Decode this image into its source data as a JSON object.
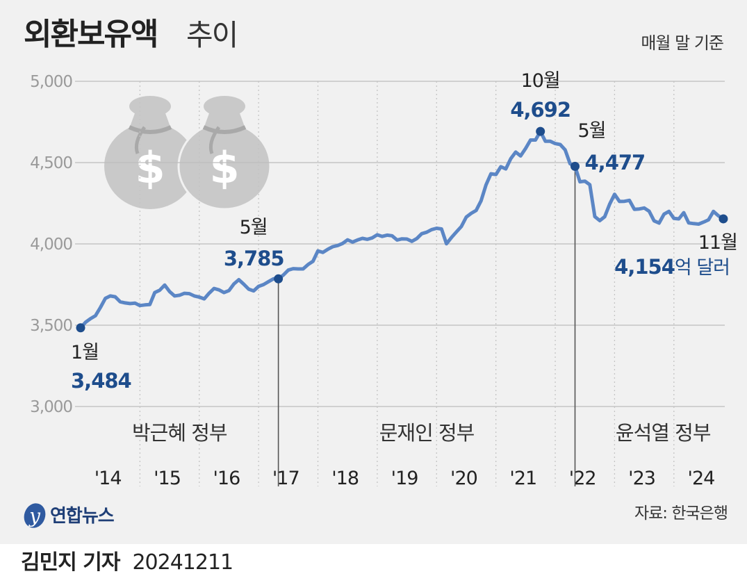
{
  "header": {
    "title_main": "외환보유액",
    "title_sub": "추이",
    "basis": "매월 말 기준"
  },
  "footer": {
    "source": "자료: 한국은행",
    "logo_text": "연합뉴스",
    "byline_name": "김민지 기자",
    "byline_date": "20241211"
  },
  "colors": {
    "line": "#5b86c5",
    "marker": "#1e4d8c",
    "value_text": "#1e4d8c",
    "panel_bg": "#f1f1f1"
  },
  "icons": [
    "money-bag-icon",
    "money-bag-icon"
  ],
  "chart_data": {
    "type": "line",
    "title": "외환보유액 추이",
    "ylim": [
      3000,
      5000
    ],
    "yticks": [
      3000,
      3500,
      4000,
      4500,
      5000
    ],
    "ytick_labels": [
      "3,000",
      "3,500",
      "4,000",
      "4,500",
      "5,000"
    ],
    "x_tick_labels": [
      "'14",
      "'15",
      "'16",
      "'17",
      "'18",
      "'19",
      "'20",
      "'21",
      "'22",
      "'23",
      "'24"
    ],
    "grid": true,
    "eras": [
      {
        "label": "박근혜 정부",
        "start": "2014-01",
        "end": "2017-05"
      },
      {
        "label": "문재인 정부",
        "start": "2017-05",
        "end": "2022-05"
      },
      {
        "label": "윤석열 정부",
        "start": "2022-05",
        "end": "2024-11"
      }
    ],
    "series": [
      {
        "start": "2014-01",
        "frequency": "monthly",
        "values": [
          3484,
          3518,
          3540,
          3558,
          3609,
          3665,
          3680,
          3675,
          3644,
          3637,
          3633,
          3636,
          3621,
          3625,
          3627,
          3701,
          3715,
          3747,
          3707,
          3680,
          3684,
          3696,
          3694,
          3680,
          3673,
          3662,
          3697,
          3726,
          3717,
          3701,
          3713,
          3754,
          3780,
          3752,
          3722,
          3711,
          3739,
          3750,
          3768,
          3785,
          3785,
          3808,
          3839,
          3848,
          3846,
          3846,
          3873,
          3893,
          3957,
          3948,
          3967,
          3983,
          3990,
          4003,
          4025,
          4011,
          4024,
          4034,
          4028,
          4037,
          4056,
          4046,
          4054,
          4050,
          4024,
          4031,
          4030,
          4016,
          4033,
          4063,
          4072,
          4088,
          4096,
          4092,
          4001,
          4039,
          4073,
          4107,
          4165,
          4188,
          4206,
          4265,
          4363,
          4431,
          4427,
          4475,
          4461,
          4524,
          4565,
          4541,
          4587,
          4639,
          4639,
          4692,
          4631,
          4631,
          4617,
          4611,
          4578,
          4493,
          4477,
          4382,
          4386,
          4364,
          4168,
          4143,
          4167,
          4244,
          4305,
          4261,
          4262,
          4268,
          4213,
          4215,
          4221,
          4201,
          4142,
          4128,
          4183,
          4200,
          4157,
          4154,
          4192,
          4129,
          4125,
          4122,
          4134,
          4148,
          4200,
          4173,
          4154
        ]
      }
    ],
    "annotations": [
      {
        "date": "2014-01",
        "month_label": "1월",
        "value": 3484,
        "value_label": "3,484"
      },
      {
        "date": "2017-05",
        "month_label": "5월",
        "value": 3785,
        "value_label": "3,785"
      },
      {
        "date": "2021-10",
        "month_label": "10월",
        "value": 4692,
        "value_label": "4,692"
      },
      {
        "date": "2022-05",
        "month_label": "5월",
        "value": 4477,
        "value_label": "4,477"
      },
      {
        "date": "2024-11",
        "month_label": "11월",
        "value": 4154,
        "value_label": "4,154",
        "unit": "억 달러"
      }
    ]
  }
}
